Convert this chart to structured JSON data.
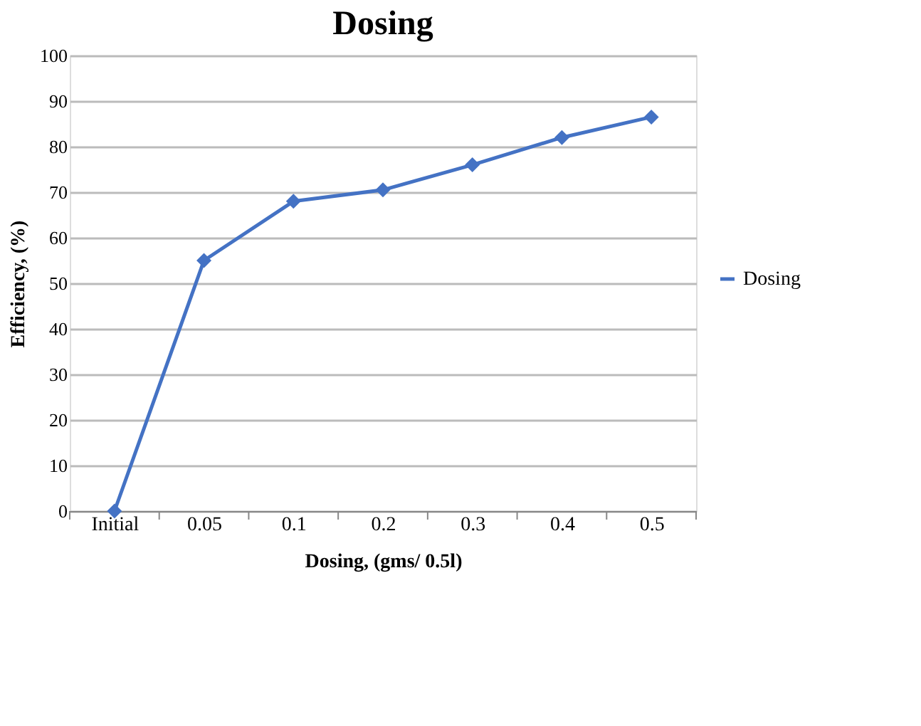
{
  "chart_data": {
    "type": "line",
    "title": "Dosing",
    "xlabel": "Dosing, (gms/ 0.5l)",
    "ylabel": "Efficiency, (%)",
    "categories": [
      "Initial",
      "0.05",
      "0.1",
      "0.2",
      "0.3",
      "0.4",
      "0.5"
    ],
    "series": [
      {
        "name": "Dosing",
        "color": "#4472c4",
        "values": [
          0,
          55,
          68,
          70.5,
          76,
          82,
          86.5
        ]
      }
    ],
    "ylim": [
      0,
      100
    ],
    "yticks": [
      0,
      10,
      20,
      30,
      40,
      50,
      60,
      70,
      80,
      90,
      100
    ],
    "grid": "y",
    "legend": "right",
    "marker": "diamond",
    "line_style": "solid"
  }
}
